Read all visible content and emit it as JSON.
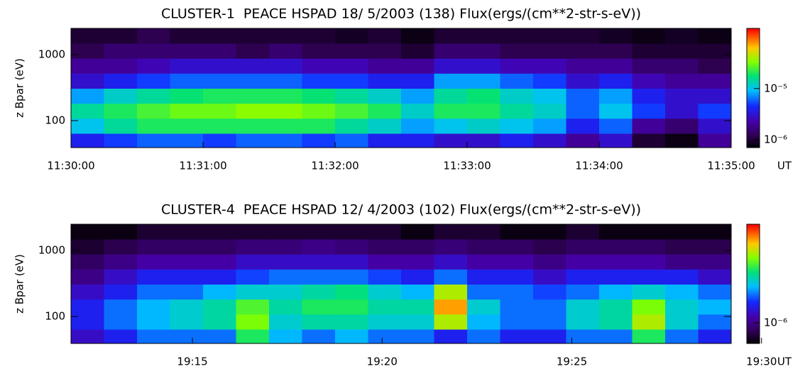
{
  "chart_data": [
    {
      "type": "heatmap",
      "title": "CLUSTER-1  PEACE HSPAD 18/ 5/2003 (138) Flux(ergs/(cm**2-str-s-eV))",
      "ylabel": "z Bpar (eV)",
      "xlabel": "UT",
      "xlim": [
        690,
        695
      ],
      "xticks": [
        {
          "value": 690,
          "label": "11:30:00"
        },
        {
          "value": 691,
          "label": "11:31:00"
        },
        {
          "value": 692,
          "label": "11:32:00"
        },
        {
          "value": 693,
          "label": "11:33:00"
        },
        {
          "value": 694,
          "label": "11:34:00"
        },
        {
          "value": 695,
          "label": "11:35:00"
        }
      ],
      "ylim": [
        39,
        2500
      ],
      "yticks": [
        100,
        1000
      ],
      "ylog": true,
      "zlim": [
        7e-07,
        0.00015
      ],
      "zticks": [
        {
          "value": 1e-06,
          "label": "10⁻⁶"
        },
        {
          "value": 1e-05,
          "label": "10⁻⁵"
        }
      ],
      "zlog": true,
      "colormap": "rainbow",
      "colorbar": true,
      "x": [
        690.125,
        690.375,
        690.625,
        690.875,
        691.125,
        691.375,
        691.625,
        691.875,
        692.125,
        692.375,
        692.625,
        692.875,
        693.125,
        693.375,
        693.625,
        693.875,
        694.125,
        694.375,
        694.625,
        694.875
      ],
      "y": [
        49,
        83,
        140,
        236,
        399,
        673,
        1137,
        1920
      ],
      "z": [
        [
          4e-06,
          5e-06,
          6e-06,
          6e-06,
          5e-06,
          6e-06,
          6e-06,
          5e-06,
          6e-06,
          4e-06,
          4e-06,
          3e-06,
          3e-06,
          4e-06,
          3e-06,
          2e-06,
          3e-06,
          1e-06,
          8e-07,
          2e-06
        ],
        [
          1e-05,
          1.5e-05,
          2e-05,
          2e-05,
          2e-05,
          2e-05,
          2e-05,
          2e-05,
          1.5e-05,
          1.2e-05,
          8e-06,
          1e-05,
          1.2e-05,
          1e-05,
          8e-06,
          4e-06,
          6e-06,
          2e-06,
          1.5e-06,
          3e-06
        ],
        [
          1.5e-05,
          2e-05,
          2.5e-05,
          3e-05,
          3e-05,
          3.5e-05,
          3.5e-05,
          3e-05,
          2.5e-05,
          2e-05,
          1.2e-05,
          2e-05,
          2e-05,
          1.5e-05,
          1.2e-05,
          6e-06,
          1e-05,
          5e-06,
          3e-06,
          5e-06
        ],
        [
          8e-06,
          1.2e-05,
          1.5e-05,
          1.8e-05,
          2e-05,
          2e-05,
          2e-05,
          1.8e-05,
          1.5e-05,
          1.2e-05,
          8e-06,
          1.5e-05,
          1.8e-05,
          1.2e-05,
          1e-05,
          6e-06,
          8e-06,
          4e-06,
          3e-06,
          3e-06
        ],
        [
          3e-06,
          4e-06,
          5e-06,
          6e-06,
          6e-06,
          6e-06,
          6e-06,
          5e-06,
          5e-06,
          4e-06,
          4e-06,
          8e-06,
          8e-06,
          6e-06,
          5e-06,
          3e-06,
          4e-06,
          2.5e-06,
          2e-06,
          2e-06
        ],
        [
          2e-06,
          2e-06,
          2.5e-06,
          3e-06,
          3e-06,
          3e-06,
          3e-06,
          2.5e-06,
          2.5e-06,
          2e-06,
          2e-06,
          3e-06,
          3e-06,
          2.5e-06,
          2.5e-06,
          2e-06,
          2e-06,
          1.5e-06,
          1.5e-06,
          1.2e-06
        ],
        [
          1.2e-06,
          1.5e-06,
          1.5e-06,
          1.5e-06,
          1.5e-06,
          1.2e-06,
          1.5e-06,
          1.2e-06,
          1.2e-06,
          1.2e-06,
          1e-06,
          1.5e-06,
          1.5e-06,
          1.2e-06,
          1.2e-06,
          1.2e-06,
          1.2e-06,
          1e-06,
          1e-06,
          1e-06
        ],
        [
          1e-06,
          1e-06,
          1.2e-06,
          1e-06,
          1e-06,
          1e-06,
          1e-06,
          1e-06,
          9e-07,
          1e-06,
          8e-07,
          1e-06,
          1e-06,
          1e-06,
          1e-06,
          1e-06,
          9e-07,
          8e-07,
          9e-07,
          8e-07
        ]
      ]
    },
    {
      "type": "heatmap",
      "title": "CLUSTER-4  PEACE HSPAD 12/ 4/2003 (102) Flux(ergs/(cm**2-str-s-eV))",
      "ylabel": "z Bpar (eV)",
      "xlabel": "UT",
      "xlim": [
        1151.8,
        1169.2
      ],
      "xticks": [
        {
          "value": 1155,
          "label": "19:15"
        },
        {
          "value": 1160,
          "label": "19:20"
        },
        {
          "value": 1165,
          "label": "19:25"
        },
        {
          "value": 1170,
          "label": "19:30"
        }
      ],
      "ylim": [
        39,
        2500
      ],
      "yticks": [
        100,
        1000
      ],
      "ylog": true,
      "zlim": [
        4.5e-07,
        4.5e-05
      ],
      "zticks": [
        {
          "value": 1e-06,
          "label": "10⁻⁶"
        }
      ],
      "zlog": true,
      "colormap": "rainbow",
      "colorbar": true,
      "x": [
        1152.235,
        1153.105,
        1153.975,
        1154.845,
        1155.715,
        1156.585,
        1157.455,
        1158.325,
        1159.195,
        1160.065,
        1160.935,
        1161.805,
        1162.675,
        1163.545,
        1164.415,
        1165.285,
        1166.155,
        1167.025,
        1167.895,
        1168.765
      ],
      "y": [
        49,
        83,
        140,
        236,
        399,
        673,
        1137,
        1920
      ],
      "z": [
        [
          1.5e-06,
          2e-06,
          3e-06,
          3e-06,
          3e-06,
          8e-06,
          4e-06,
          3e-06,
          4e-06,
          3e-06,
          3e-06,
          2e-06,
          3e-06,
          2e-06,
          2e-06,
          3e-06,
          3e-06,
          8e-06,
          3e-06,
          2e-06
        ],
        [
          2e-06,
          3e-06,
          4e-06,
          5e-06,
          6e-06,
          1.2e-05,
          5e-06,
          6e-06,
          6e-06,
          5e-06,
          5e-06,
          1.5e-05,
          4e-06,
          3e-06,
          3e-06,
          5e-06,
          6e-06,
          1.5e-05,
          5e-06,
          3e-06
        ],
        [
          2e-06,
          3e-06,
          4e-06,
          5e-06,
          6e-06,
          1e-05,
          6e-06,
          8e-06,
          8e-06,
          6e-06,
          6e-06,
          2.5e-05,
          5e-06,
          3e-06,
          3e-06,
          5e-06,
          6e-06,
          1.2e-05,
          5e-06,
          4e-06
        ],
        [
          1.5e-06,
          2e-06,
          3e-06,
          3e-06,
          4e-06,
          5e-06,
          5e-06,
          6e-06,
          7e-06,
          5e-06,
          4e-06,
          1.5e-05,
          3e-06,
          3e-06,
          2.5e-06,
          3e-06,
          4e-06,
          5e-06,
          4e-06,
          3e-06
        ],
        [
          1e-06,
          1.5e-06,
          2e-06,
          2e-06,
          2e-06,
          2.5e-06,
          3e-06,
          3e-06,
          3e-06,
          2.5e-06,
          2e-06,
          3e-06,
          2e-06,
          2e-06,
          1.5e-06,
          2e-06,
          2e-06,
          2e-06,
          2e-06,
          1.5e-06
        ],
        [
          8e-07,
          1e-06,
          1.2e-06,
          1.2e-06,
          1.2e-06,
          1.5e-06,
          1.5e-06,
          1.5e-06,
          1.5e-06,
          1.2e-06,
          1.2e-06,
          1.5e-06,
          1.2e-06,
          1.2e-06,
          1e-06,
          1.2e-06,
          1.2e-06,
          1.2e-06,
          1e-06,
          1e-06
        ],
        [
          6e-07,
          7e-07,
          8e-07,
          8e-07,
          8e-07,
          9e-07,
          9e-07,
          1e-06,
          9e-07,
          8e-07,
          8e-07,
          9e-07,
          8e-07,
          8e-07,
          7e-07,
          8e-07,
          8e-07,
          8e-07,
          7e-07,
          7e-07
        ],
        [
          5e-07,
          5e-07,
          6e-07,
          6e-07,
          6e-07,
          6e-07,
          6e-07,
          6e-07,
          6e-07,
          6e-07,
          5e-07,
          6e-07,
          6e-07,
          5e-07,
          5e-07,
          6e-07,
          5e-07,
          5e-07,
          5e-07,
          5e-07
        ]
      ]
    }
  ]
}
